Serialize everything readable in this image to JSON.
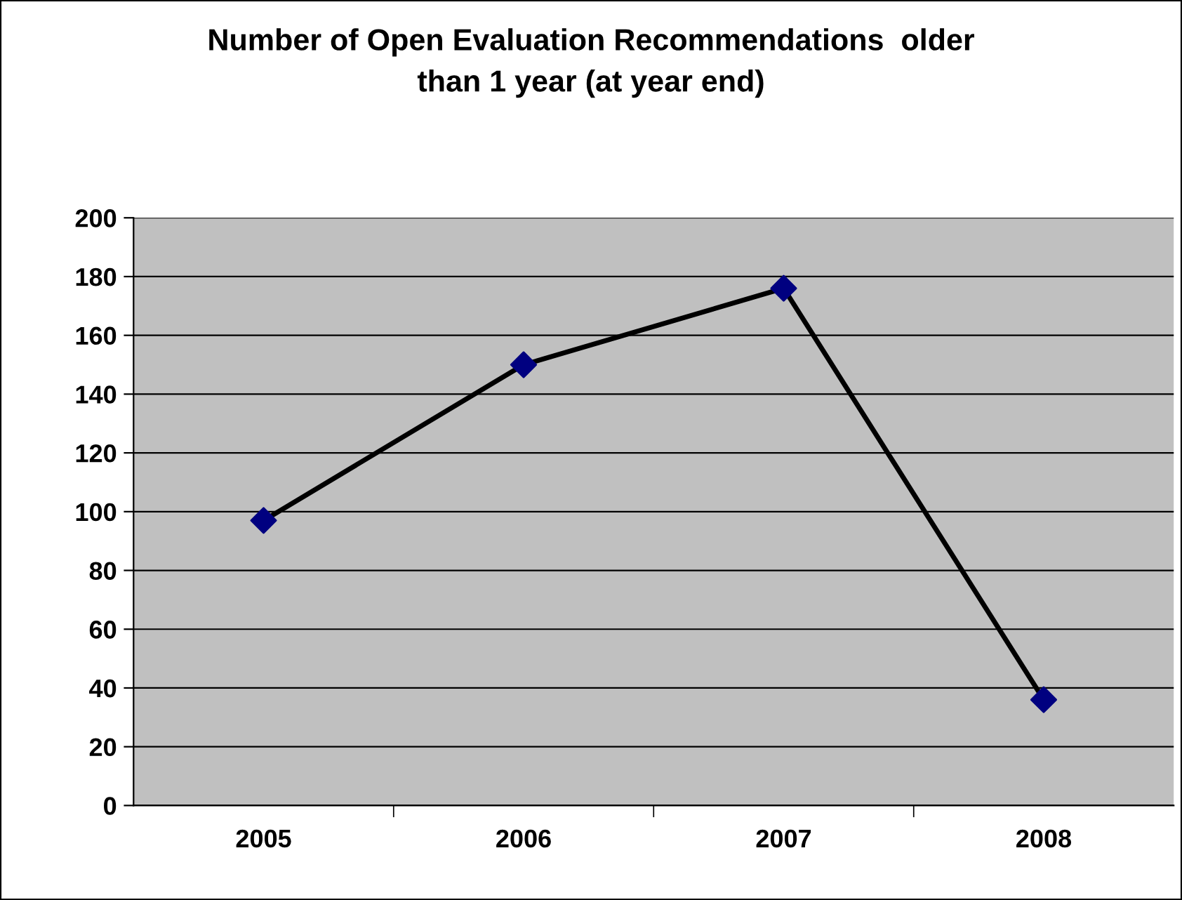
{
  "chart_data": {
    "type": "line",
    "title": "Number of Open Evaluation Recommendations  older\nthan 1 year (at year end)",
    "categories": [
      "2005",
      "2006",
      "2007",
      "2008"
    ],
    "series": [
      {
        "color": "#000000",
        "colors": [
          "#000080",
          "#000080",
          "#000080",
          "#000080"
        ],
        "values": [
          97,
          150,
          176,
          36
        ]
      }
    ],
    "marker": "diamond",
    "line_style": "solid",
    "ylim": [
      0,
      200
    ],
    "yticks": [
      0,
      20,
      40,
      60,
      80,
      100,
      120,
      140,
      160,
      180,
      200
    ],
    "grid": "y",
    "legend": false
  }
}
